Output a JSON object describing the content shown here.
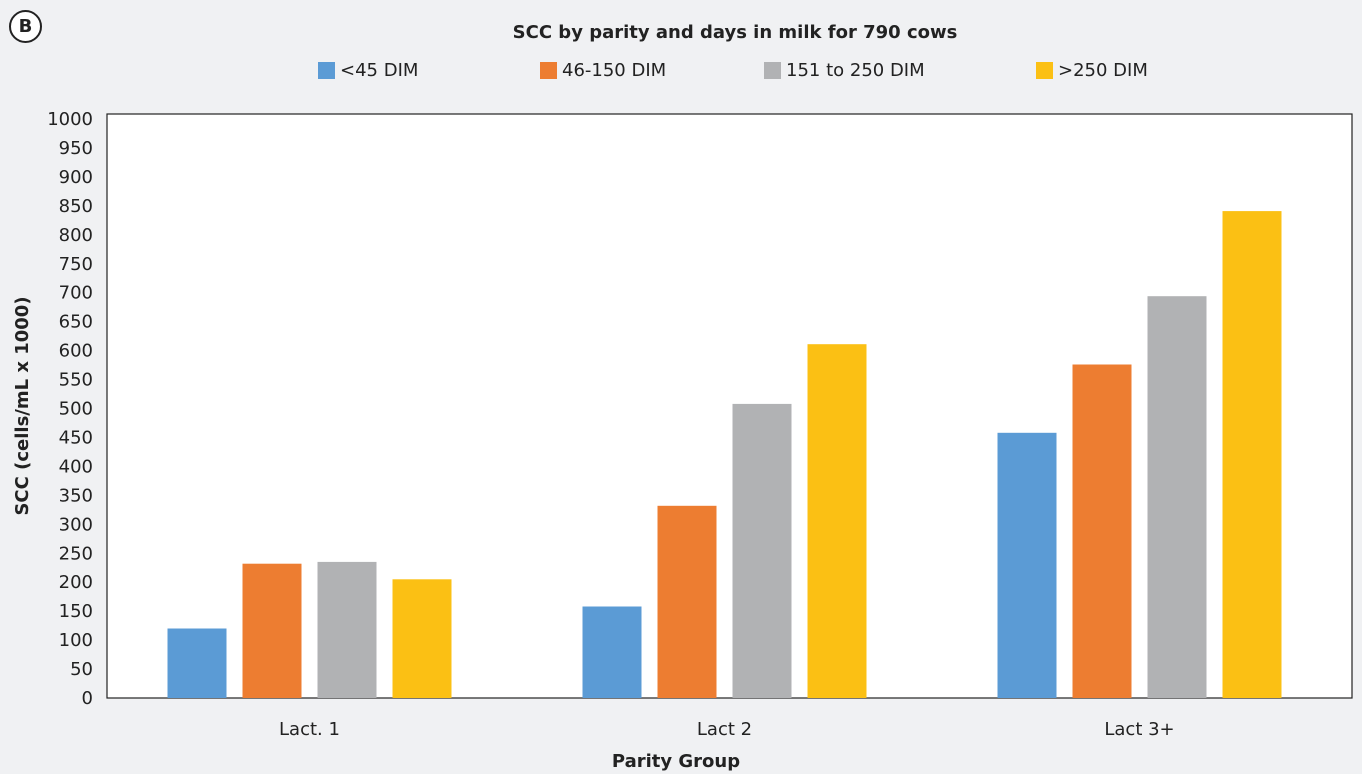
{
  "panel_label": "B",
  "chart_data": {
    "type": "bar",
    "title": "SCC by parity and days in milk for 790 cows",
    "xlabel": "Parity Group",
    "ylabel": "SCC (cells/mL x 1000)",
    "categories": [
      "Lact. 1",
      "Lact 2",
      "Lact 3+"
    ],
    "ylim": [
      0,
      1000
    ],
    "yticks": [
      0,
      50,
      100,
      150,
      200,
      250,
      300,
      350,
      400,
      450,
      500,
      550,
      600,
      650,
      700,
      750,
      800,
      850,
      900,
      950,
      1000
    ],
    "grid": false,
    "legend_position": "top",
    "series": [
      {
        "name": "<45 DIM",
        "color": "#5b9bd5",
        "values": [
          120,
          158,
          458
        ]
      },
      {
        "name": "46-150 DIM",
        "color": "#ed7d31",
        "values": [
          232,
          332,
          576
        ]
      },
      {
        "name": "151 to 250 DIM",
        "color": "#b1b2b4",
        "values": [
          235,
          508,
          694
        ]
      },
      {
        "name": ">250 DIM",
        "color": "#fbc014",
        "values": [
          205,
          611,
          841
        ]
      }
    ]
  }
}
